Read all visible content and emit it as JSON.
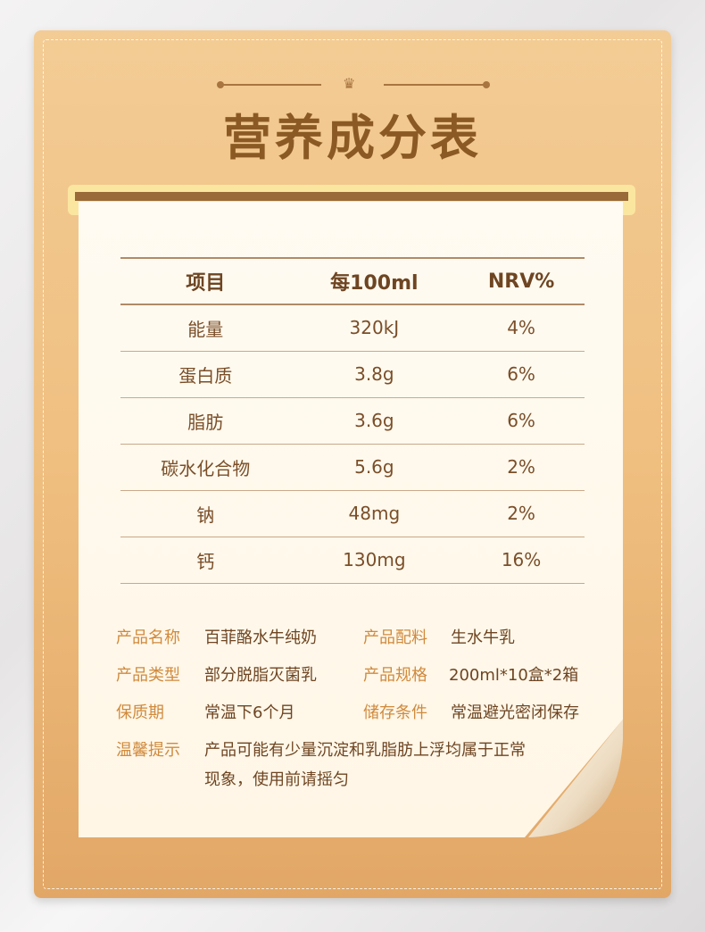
{
  "title": "营养成分表",
  "table": {
    "headers": [
      "项目",
      "每100ml",
      "NRV%"
    ],
    "rows": [
      [
        "能量",
        "320kJ",
        "4%"
      ],
      [
        "蛋白质",
        "3.8g",
        "6%"
      ],
      [
        "脂肪",
        "3.6g",
        "6%"
      ],
      [
        "碳水化合物",
        "5.6g",
        "2%"
      ],
      [
        "钠",
        "48mg",
        "2%"
      ],
      [
        "钙",
        "130mg",
        "16%"
      ]
    ]
  },
  "info": {
    "name_label": "产品名称",
    "name": "百菲酪水牛纯奶",
    "ingredients_label": "产品配料",
    "ingredients": "生水牛乳",
    "type_label": "产品类型",
    "type": "部分脱脂灭菌乳",
    "spec_label": "产品规格",
    "spec": "200ml*10盒*2箱",
    "shelf_label": "保质期",
    "shelf": "常温下6个月",
    "storage_label": "储存条件",
    "storage": "常温避光密闭保存",
    "tip_label": "温馨提示",
    "tip_line1": "产品可能有少量沉淀和乳脂肪上浮均属于正常",
    "tip_line2": "现象，使用前请摇匀"
  },
  "colors": {
    "title": "#8b5a24",
    "label": "#d08a3c",
    "value": "#6e4522",
    "card": "#efbf80"
  }
}
